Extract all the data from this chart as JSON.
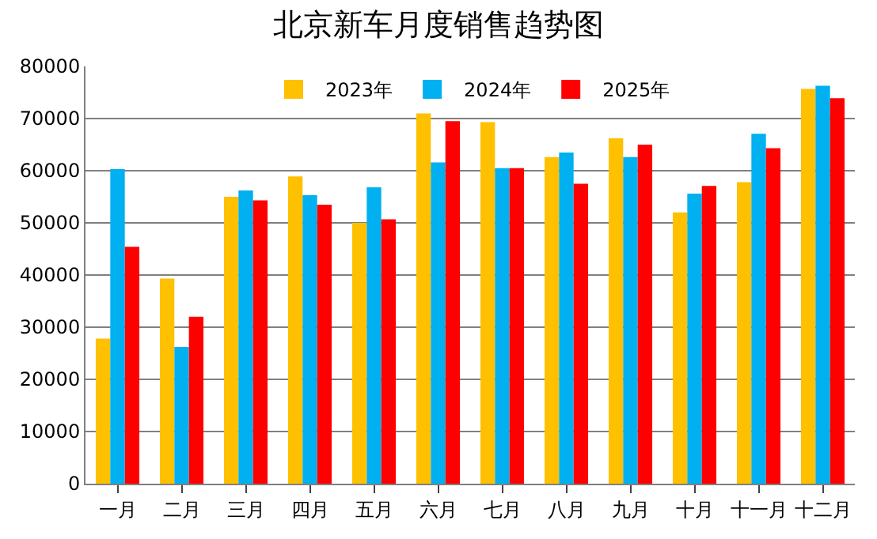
{
  "chart_data": {
    "type": "bar",
    "title": "北京新车月度销售趋势图",
    "categories": [
      "一月",
      "二月",
      "三月",
      "四月",
      "五月",
      "六月",
      "七月",
      "八月",
      "九月",
      "十月",
      "十一月",
      "十二月"
    ],
    "series": [
      {
        "name": "2023年",
        "color": "#ffc000",
        "values": [
          27800,
          39300,
          55000,
          58900,
          50000,
          71000,
          69300,
          62600,
          66200,
          52000,
          57800,
          75700
        ]
      },
      {
        "name": "2024年",
        "color": "#00b0f0",
        "values": [
          60300,
          26200,
          56200,
          55300,
          56800,
          61600,
          60500,
          63500,
          62600,
          55600,
          67100,
          76300
        ]
      },
      {
        "name": "2025年",
        "color": "#ff0000",
        "values": [
          45400,
          32000,
          54300,
          53500,
          50700,
          69500,
          60500,
          57500,
          65000,
          57100,
          64300,
          73900
        ]
      }
    ],
    "ylim": [
      0,
      80000
    ],
    "yticks": [
      0,
      10000,
      20000,
      30000,
      40000,
      50000,
      60000,
      70000,
      80000
    ],
    "grid": "y",
    "legend": "top"
  }
}
